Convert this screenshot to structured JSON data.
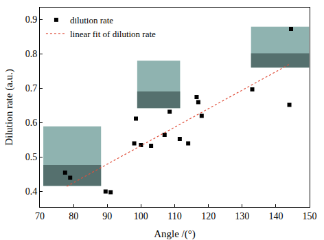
{
  "chart_data": {
    "type": "scatter",
    "x_label": "Angle /(°)",
    "y_label": "Dilution rate (a.u.)",
    "xlim": [
      70,
      150
    ],
    "xticks": [
      70,
      80,
      90,
      100,
      110,
      120,
      130,
      140,
      150
    ],
    "ylim": [
      0.355,
      0.935
    ],
    "yticks": [
      0.4,
      0.5,
      0.6,
      0.7,
      0.8,
      0.9
    ],
    "grid": false,
    "legend": "upper left",
    "series": [
      {
        "name": "dilution rate",
        "type": "scatter",
        "marker": "square",
        "color": "#000000",
        "x": [
          77.5,
          79,
          89.5,
          91,
          98,
          98.5,
          100,
          103,
          107,
          108.5,
          111.5,
          114,
          116.5,
          117,
          118,
          133,
          144,
          144.5
        ],
        "values": [
          0.455,
          0.44,
          0.4,
          0.398,
          0.54,
          0.612,
          0.535,
          0.533,
          0.565,
          0.632,
          0.553,
          0.54,
          0.675,
          0.66,
          0.62,
          0.697,
          0.652,
          0.873
        ]
      },
      {
        "name": "linear fit of dilution rate",
        "type": "line",
        "line_style": "dotted",
        "color": "#e0503c",
        "x": [
          78,
          144
        ],
        "values": [
          0.415,
          0.77
        ]
      }
    ]
  }
}
